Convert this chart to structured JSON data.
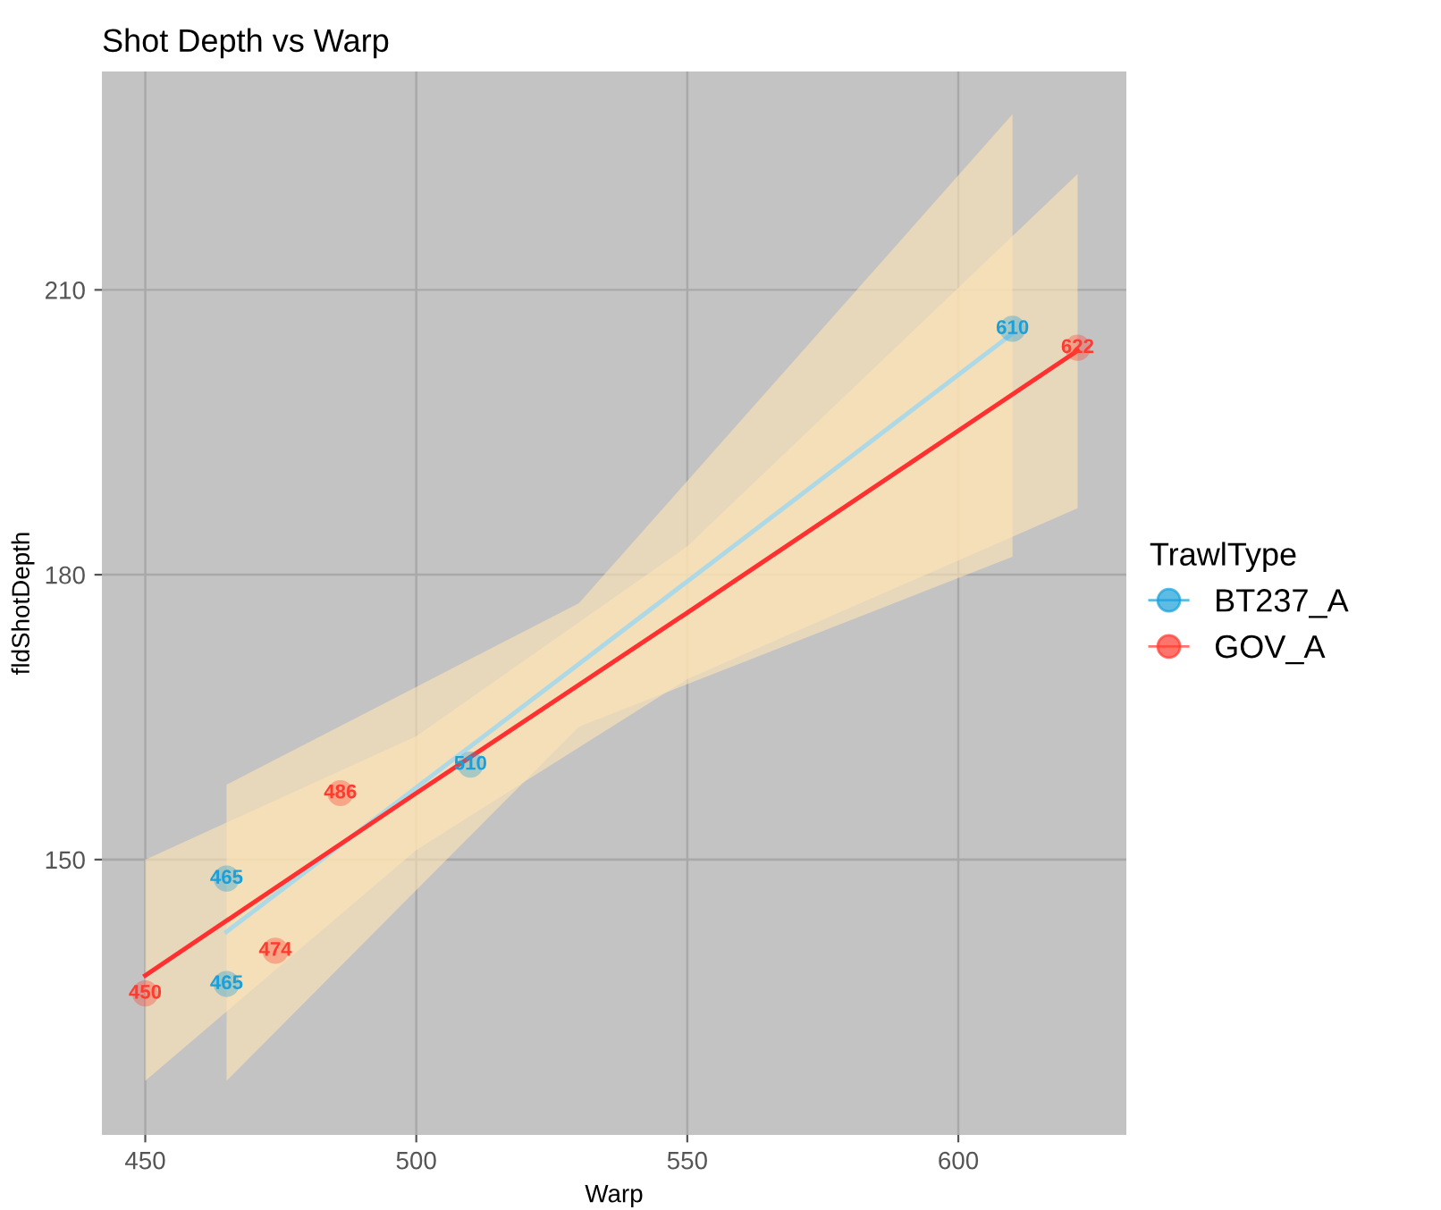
{
  "chart_data": {
    "type": "scatter",
    "title": "Shot Depth vs Warp",
    "xlabel": "Warp",
    "ylabel": "fldShotDepth",
    "legend_title": "TrawlType",
    "xlim": [
      442,
      631
    ],
    "xticks": [
      450,
      500,
      550,
      600
    ],
    "ylim": [
      121,
      233
    ],
    "yticks": [
      150,
      180,
      210
    ],
    "grid": true,
    "legend": "right",
    "series": [
      {
        "name": "BT237_A",
        "color": "#1a9fd9",
        "marker": "circle",
        "x": [
          465,
          465,
          510,
          610
        ],
        "values": [
          148.0,
          136.9,
          160.0,
          205.9
        ]
      },
      {
        "name": "GOV_A",
        "color": "#ff3b2f",
        "marker": "circle",
        "x": [
          450,
          474,
          486,
          622
        ],
        "values": [
          135.9,
          140.4,
          157.0,
          203.9
        ]
      },
      {
        "type": "line",
        "color": "#add8e6",
        "x": [
          465,
          530,
          610
        ],
        "values": [
          142.4,
          170.6,
          205.4
        ],
        "lower": [
          126.7,
          164,
          181.9
        ],
        "upper": [
          157.9,
          177,
          228.5
        ]
      },
      {
        "type": "line",
        "color": "#ff3030",
        "x": [
          450,
          500,
          550,
          622
        ],
        "values": [
          137.8,
          157,
          176,
          203.6
        ],
        "lower": [
          126.7,
          151,
          169,
          187
        ],
        "upper": [
          150,
          163,
          183,
          222.2
        ]
      }
    ],
    "annotations": [
      {
        "text": "465",
        "x": 465,
        "y": 148.0
      },
      {
        "text": "465",
        "x": 465,
        "y": 136.9
      },
      {
        "text": "510",
        "x": 510,
        "y": 160.0
      },
      {
        "text": "610",
        "x": 610,
        "y": 205.9
      },
      {
        "text": "450",
        "x": 450,
        "y": 135.9
      },
      {
        "text": "474",
        "x": 474,
        "y": 140.4
      },
      {
        "text": "486",
        "x": 486,
        "y": 157.0
      },
      {
        "text": "622",
        "x": 622,
        "y": 203.9
      }
    ]
  }
}
